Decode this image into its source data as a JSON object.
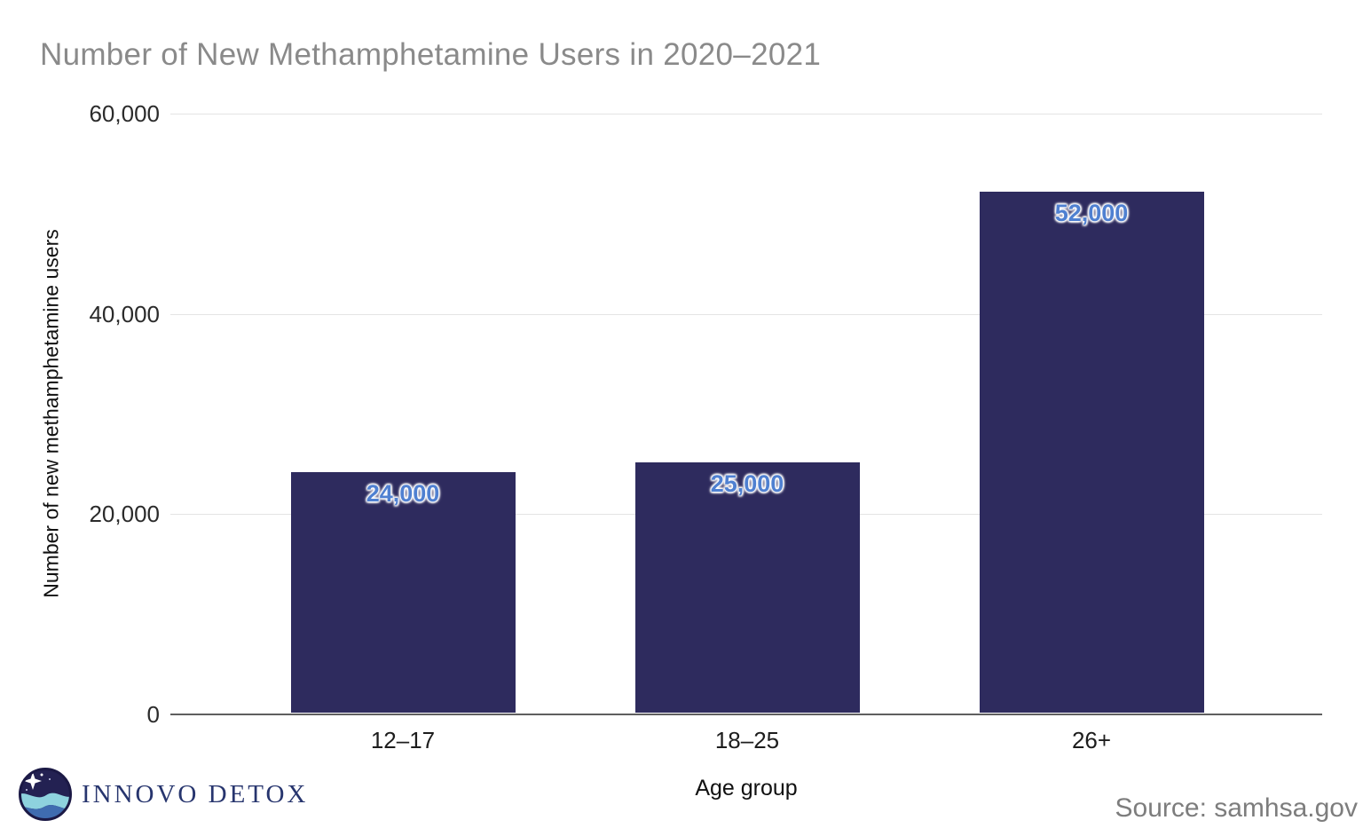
{
  "title": "Number of New Methamphetamine Users in 2020–2021",
  "chart_data": {
    "type": "bar",
    "title": "Number of New Methamphetamine Users in 2020–2021",
    "categories": [
      "12–17",
      "18–25",
      "26+"
    ],
    "values": [
      24000,
      25000,
      52000
    ],
    "value_labels": [
      "24,000",
      "25,000",
      "52,000"
    ],
    "xlabel": "Age group",
    "ylabel": "Number of new methamphetamine users",
    "ylim": [
      0,
      60000
    ],
    "yticks": [
      0,
      20000,
      40000,
      60000
    ],
    "ytick_labels": [
      "0",
      "20,000",
      "40,000",
      "60,000"
    ],
    "grid": true,
    "legend": "none",
    "bar_color": "#2e2b5e",
    "value_label_color": "#4f80d1"
  },
  "footer": {
    "logo_text": "INNOVO DETOX",
    "source": "Source: samhsa.gov"
  },
  "colors": {
    "title_gray": "#8a8a8a",
    "gridline": "#e4e4e4",
    "axis_line": "#5f5f5f",
    "logo_navy": "#27356e",
    "logo_sky": "#232152",
    "logo_wave_light": "#8ed2de",
    "logo_wave_dark": "#3f6cb0",
    "source_gray": "#7d7d7d"
  }
}
